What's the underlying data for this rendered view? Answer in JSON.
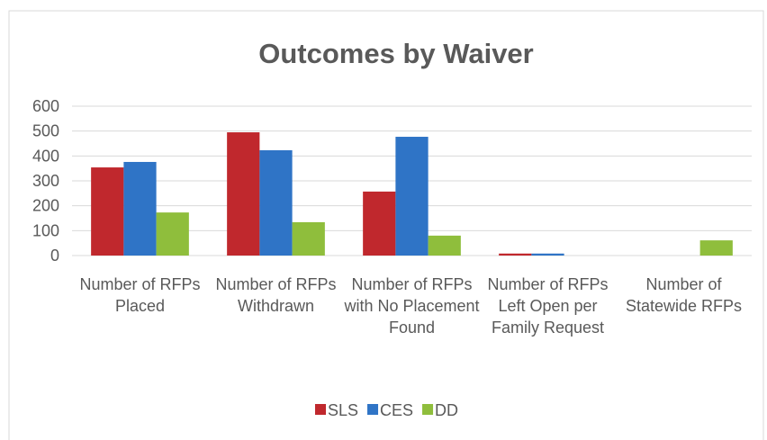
{
  "chart_data": {
    "type": "bar",
    "title": "Outcomes by Waiver",
    "categories": [
      "Number of RFPs Placed",
      "Number of RFPs Withdrawn",
      "Number of RFPs with No Placement Found",
      "Number of RFPs Left Open per Family Request",
      "Number of Statewide RFPs"
    ],
    "series": [
      {
        "name": "SLS",
        "color": "#c0282d",
        "values": [
          354,
          495,
          257,
          8,
          0
        ]
      },
      {
        "name": "CES",
        "color": "#2f74c6",
        "values": [
          376,
          423,
          477,
          8,
          0
        ]
      },
      {
        "name": "DD",
        "color": "#8fbe3c",
        "values": [
          173,
          134,
          80,
          0,
          61
        ]
      }
    ],
    "ylim": [
      0,
      600
    ],
    "yticks": [
      0,
      100,
      200,
      300,
      400,
      500,
      600
    ],
    "grid": true,
    "legend": "bottom"
  }
}
